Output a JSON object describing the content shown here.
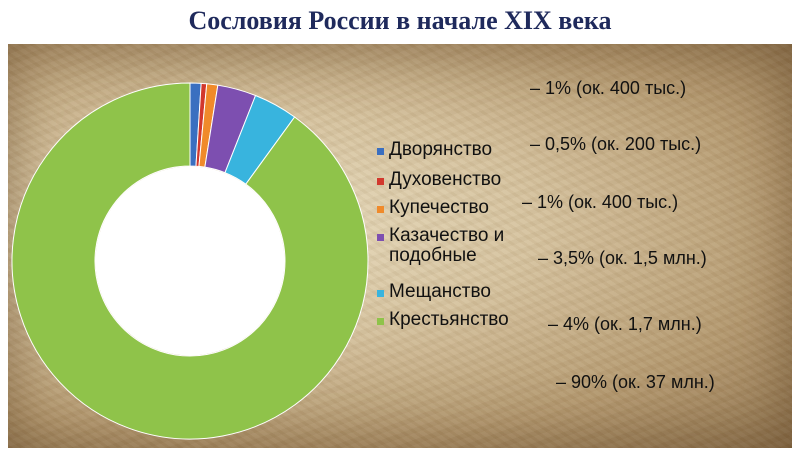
{
  "title": "Сословия России в начале XIX века",
  "chart_data": {
    "type": "pie",
    "subtype": "donut",
    "title": "Сословия России в начале XIX века",
    "legend_position": "right",
    "series": [
      {
        "name": "Дворянство",
        "value": 1,
        "color": "#3a6fc0"
      },
      {
        "name": "Духовенство",
        "value": 0.5,
        "color": "#d2382d"
      },
      {
        "name": "Купечество",
        "value": 1,
        "color": "#f08a2a"
      },
      {
        "name": "Казачество и подобные",
        "value": 3.5,
        "color": "#7d4fb0"
      },
      {
        "name": "Мещанство",
        "value": 4,
        "color": "#38b4de"
      },
      {
        "name": "Крестьянство",
        "value": 90,
        "color": "#8fc34a"
      }
    ],
    "annotations": [
      "– 1% (ок. 400 тыс.)",
      "– 0,5% (ок. 200 тыс.)",
      "– 1% (ок. 400 тыс.)",
      "– 3,5% (ок. 1,5 млн.)",
      "– 4% (ок. 1,7 млн.)",
      "– 90% (ок. 37 млн.)"
    ]
  },
  "legend": {
    "items": [
      {
        "label": "Дворянство",
        "color": "#3a6fc0"
      },
      {
        "label": "Духовенство",
        "color": "#d2382d"
      },
      {
        "label": "Купечество",
        "color": "#f08a2a"
      },
      {
        "label_line1": "Казачество и",
        "label_line2": "подобные",
        "color": "#7d4fb0"
      },
      {
        "label": "Мещанство",
        "color": "#38b4de"
      },
      {
        "label": "Крестьянство",
        "color": "#8fc34a"
      }
    ]
  }
}
